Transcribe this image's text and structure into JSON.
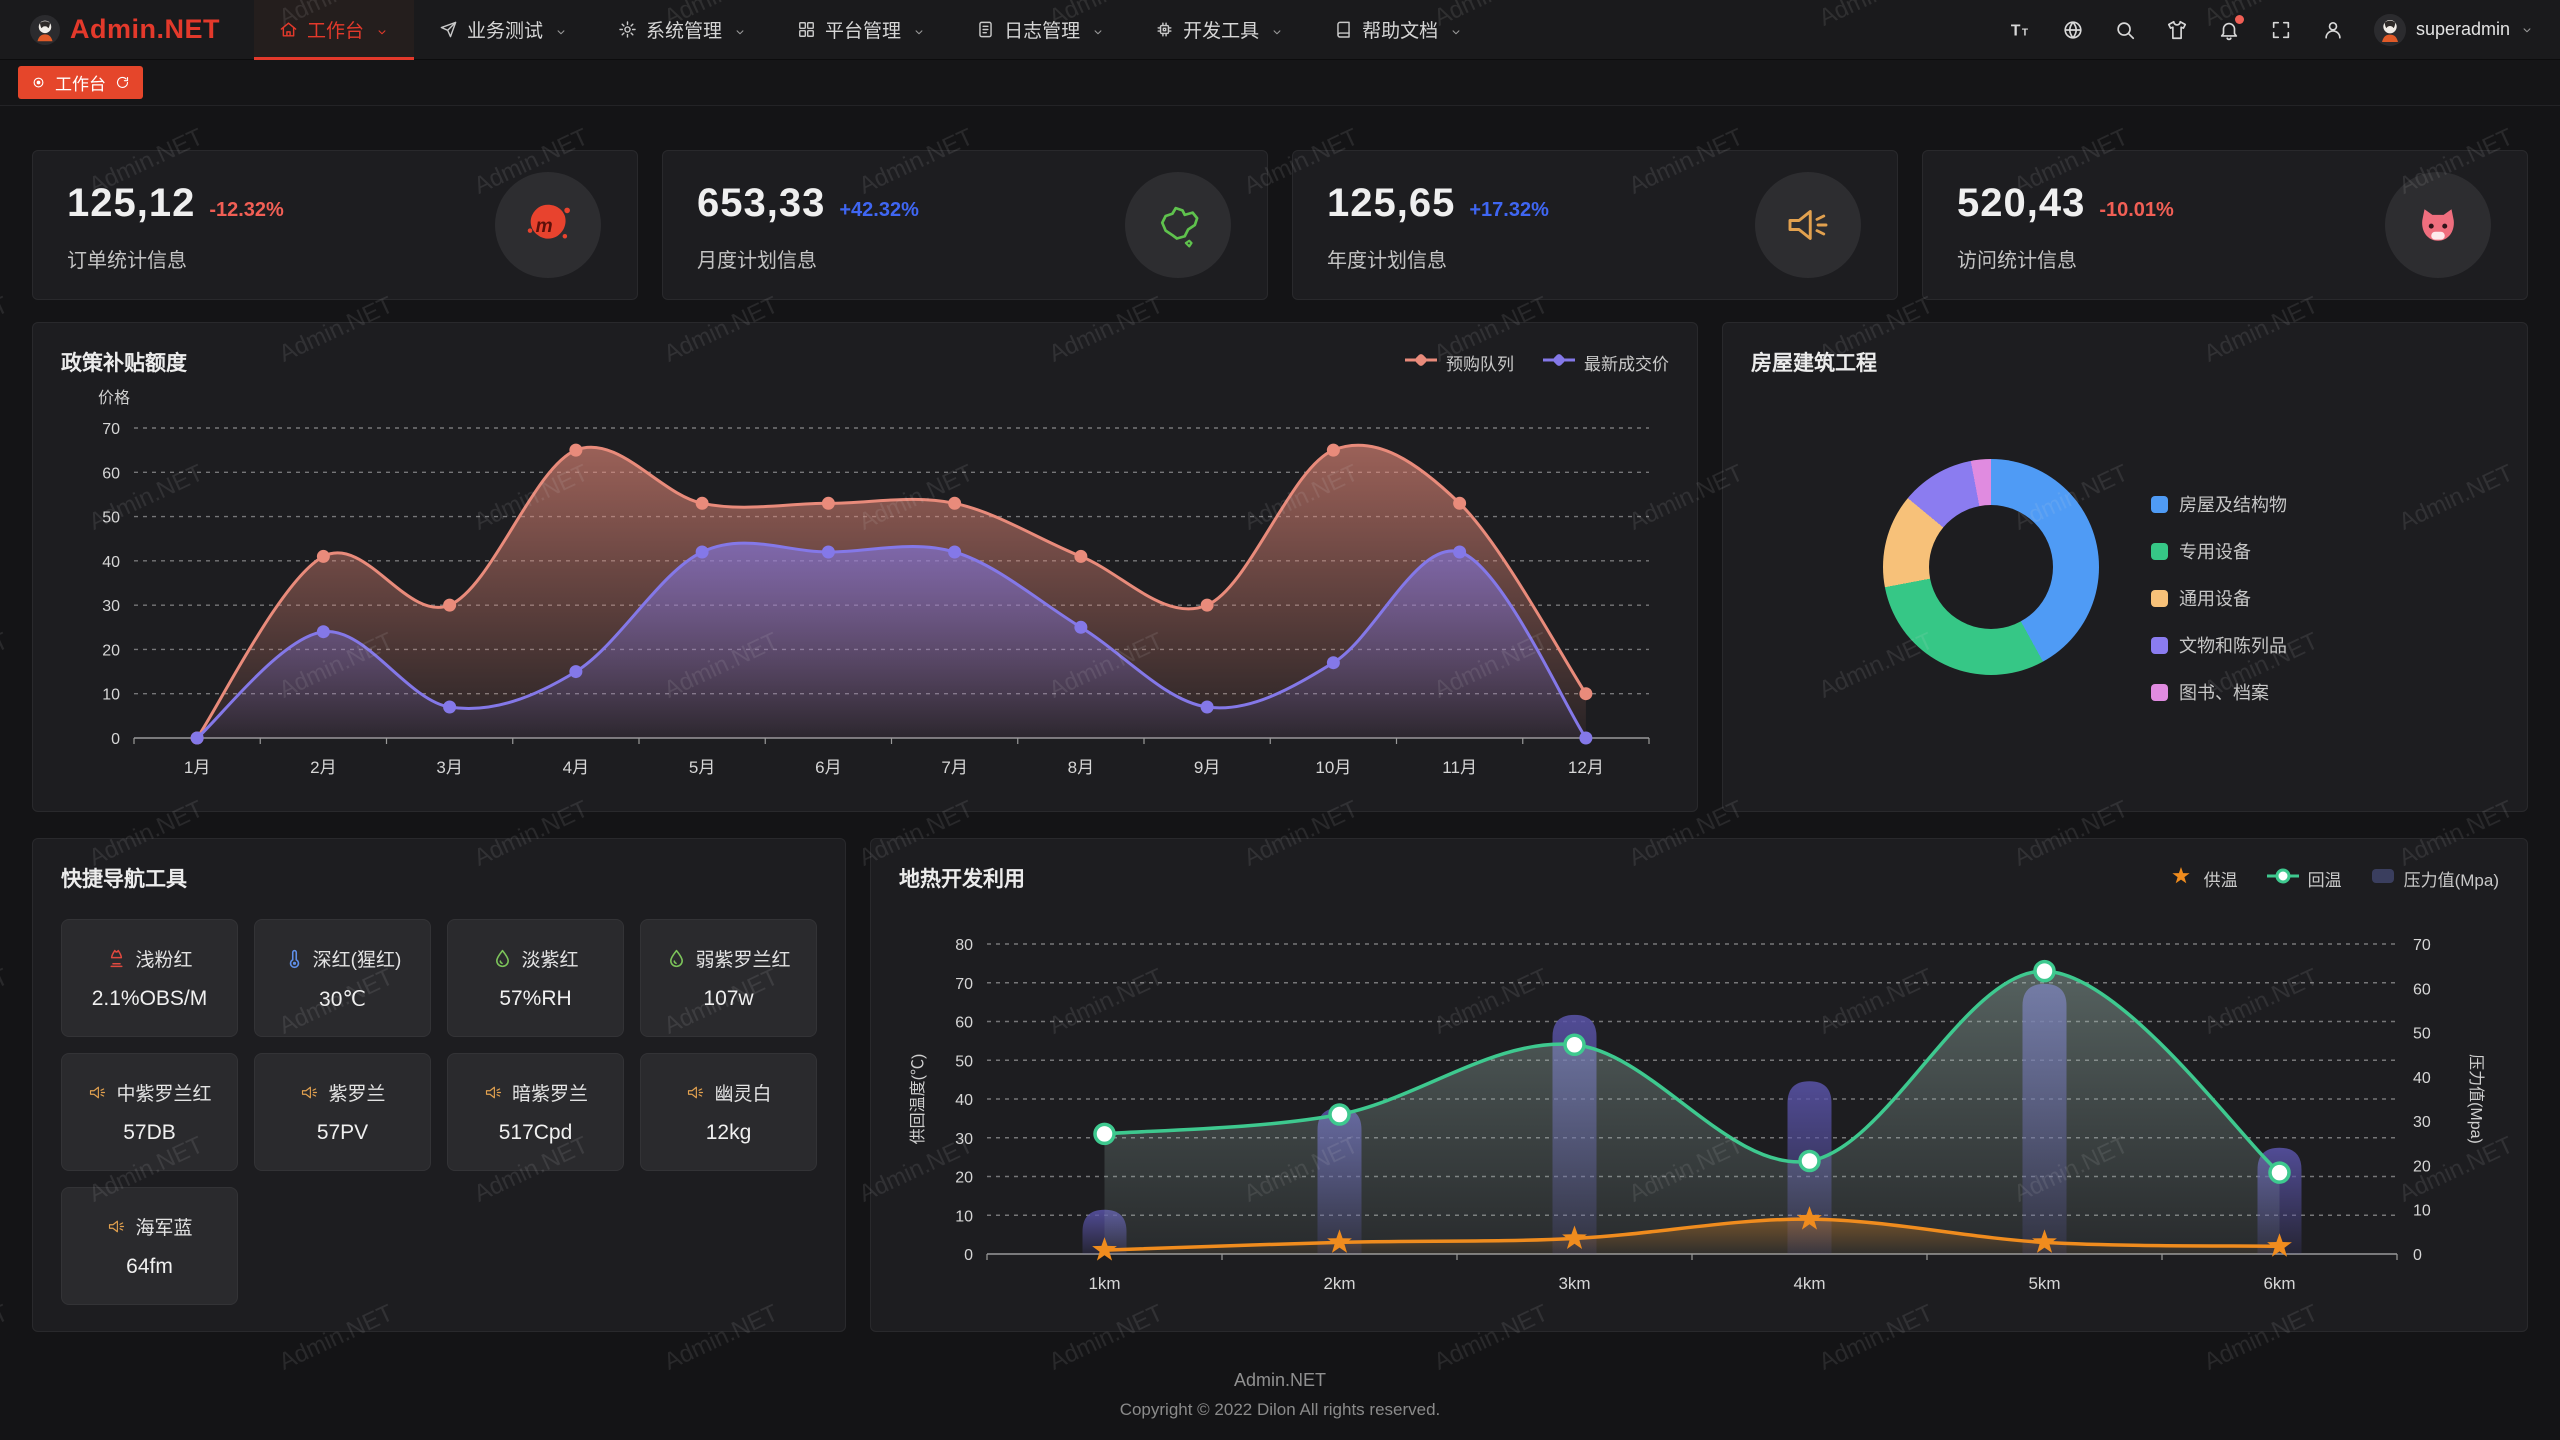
{
  "navbar": {
    "logo_text": "Admin.NET",
    "menu": [
      {
        "label": "工作台",
        "icon": "home-icon",
        "active": true
      },
      {
        "label": "业务测试",
        "icon": "send-icon",
        "active": false
      },
      {
        "label": "系统管理",
        "icon": "gear-icon",
        "active": false
      },
      {
        "label": "平台管理",
        "icon": "grid-icon",
        "active": false
      },
      {
        "label": "日志管理",
        "icon": "file-icon",
        "active": false
      },
      {
        "label": "开发工具",
        "icon": "chip-icon",
        "active": false
      },
      {
        "label": "帮助文档",
        "icon": "book-icon",
        "active": false
      }
    ],
    "tools": [
      "font-size-icon",
      "language-icon",
      "search-icon",
      "theme-icon",
      "bell-icon",
      "fullscreen-icon",
      "user-icon"
    ],
    "notification_badge": true,
    "username": "superadmin"
  },
  "tabbar": {
    "tabs": [
      {
        "label": "工作台",
        "active": true
      }
    ]
  },
  "stats": [
    {
      "value": "125,12",
      "delta": "-12.32%",
      "direction": "down",
      "label": "订单统计信息",
      "icon": "meetup-icon"
    },
    {
      "value": "653,33",
      "delta": "+42.32%",
      "direction": "up",
      "label": "月度计划信息",
      "icon": "china-map-icon"
    },
    {
      "value": "125,65",
      "delta": "+17.32%",
      "direction": "up",
      "label": "年度计划信息",
      "icon": "speaker-icon"
    },
    {
      "value": "520,43",
      "delta": "-10.01%",
      "direction": "down",
      "label": "访问统计信息",
      "icon": "cat-icon"
    }
  ],
  "policy_panel": {
    "title": "政策补贴额度",
    "chart_data": {
      "type": "line",
      "smooth": true,
      "area": true,
      "categories": [
        "1月",
        "2月",
        "3月",
        "4月",
        "5月",
        "6月",
        "7月",
        "8月",
        "9月",
        "10月",
        "11月",
        "12月"
      ],
      "series": [
        {
          "name": "预购队列",
          "color": "#e98b7b",
          "values": [
            0,
            41,
            30,
            65,
            53,
            53,
            53,
            41,
            30,
            65,
            53,
            10
          ]
        },
        {
          "name": "最新成交价",
          "color": "#8478e8",
          "values": [
            0,
            24,
            7,
            15,
            42,
            42,
            42,
            25,
            7,
            17,
            42,
            0
          ]
        }
      ],
      "ylabel": "价格",
      "ylim": [
        0,
        70
      ],
      "ytick_step": 10,
      "grid": "dashed",
      "legend_position": "top-right"
    }
  },
  "building_panel": {
    "title": "房屋建筑工程",
    "chart_data": {
      "type": "pie",
      "donut": true,
      "slices": [
        {
          "label": "房屋及结构物",
          "value": 42,
          "color": "#4f9bf5"
        },
        {
          "label": "专用设备",
          "value": 30,
          "color": "#36c786"
        },
        {
          "label": "通用设备",
          "value": 14,
          "color": "#f7c179"
        },
        {
          "label": "文物和陈列品",
          "value": 11,
          "color": "#8b7cf0"
        },
        {
          "label": "图书、档案",
          "value": 3,
          "color": "#e08be0"
        }
      ],
      "legend_position": "right"
    }
  },
  "quick_nav": {
    "title": "快捷导航工具",
    "items": [
      {
        "name": "浅粉红",
        "value": "2.1%OBS/M",
        "icon": "factory-icon",
        "color": "#e0493f"
      },
      {
        "name": "深红(猩红)",
        "value": "30℃",
        "icon": "thermometer-icon",
        "color": "#5f8fe8"
      },
      {
        "name": "淡紫红",
        "value": "57%RH",
        "icon": "drop-icon",
        "color": "#7cc35a"
      },
      {
        "name": "弱紫罗兰红",
        "value": "107w",
        "icon": "drop-icon",
        "color": "#7cc35a"
      },
      {
        "name": "中紫罗兰红",
        "value": "57DB",
        "icon": "speaker-icon",
        "color": "#e2a14f"
      },
      {
        "name": "紫罗兰",
        "value": "57PV",
        "icon": "speaker-icon",
        "color": "#e2a14f"
      },
      {
        "name": "暗紫罗兰",
        "value": "517Cpd",
        "icon": "speaker-icon",
        "color": "#e2a14f"
      },
      {
        "name": "幽灵白",
        "value": "12kg",
        "icon": "speaker-icon",
        "color": "#e2a14f"
      },
      {
        "name": "海军蓝",
        "value": "64fm",
        "icon": "speaker-icon",
        "color": "#e2a14f"
      }
    ]
  },
  "geo_panel": {
    "title": "地热开发利用",
    "chart_data": {
      "type": "line+bar",
      "categories": [
        "1km",
        "2km",
        "3km",
        "4km",
        "5km",
        "6km"
      ],
      "series": [
        {
          "name": "供温",
          "type": "line",
          "marker": "star",
          "axis": "left",
          "color": "#f08c1e",
          "values": [
            1,
            3,
            4,
            9,
            3,
            2
          ]
        },
        {
          "name": "回温",
          "type": "line",
          "marker": "circle",
          "axis": "left",
          "color": "#3ec98f",
          "values": [
            31,
            36,
            54,
            24,
            73,
            21
          ]
        },
        {
          "name": "压力值(Mpa)",
          "type": "bar",
          "axis": "right",
          "color": "#5a54aa",
          "values": [
            10,
            33,
            54,
            39,
            61,
            24
          ]
        }
      ],
      "left_axis": {
        "label": "供回温度(℃)",
        "min": 0,
        "max": 80,
        "step": 10
      },
      "right_axis": {
        "label": "压力值(Mpa)",
        "min": 0,
        "max": 70,
        "step": 10
      },
      "grid": "dashed"
    }
  },
  "footer": {
    "line1": "Admin.NET",
    "line2": "Copyright © 2022 Dilon All rights reserved."
  },
  "watermark": "Admin.NET"
}
